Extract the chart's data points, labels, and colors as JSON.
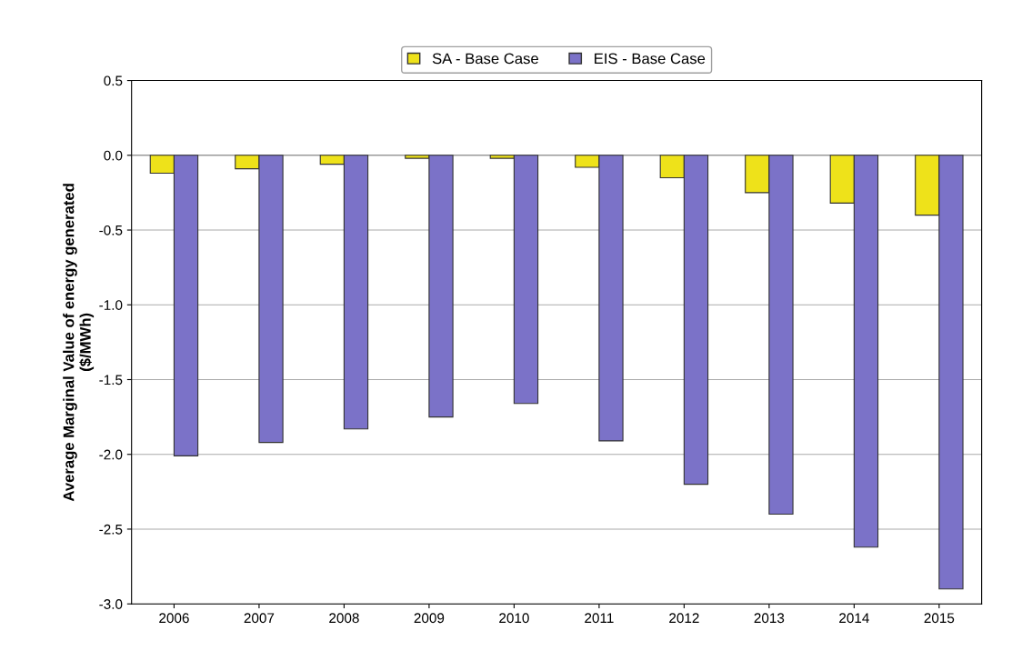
{
  "chart_data": {
    "type": "bar",
    "categories": [
      "2006",
      "2007",
      "2008",
      "2009",
      "2010",
      "2011",
      "2012",
      "2013",
      "2014",
      "2015"
    ],
    "series": [
      {
        "name": "SA - Base Case",
        "color": "#eee21a",
        "values": [
          -0.12,
          -0.09,
          -0.06,
          -0.02,
          -0.02,
          -0.08,
          -0.15,
          -0.25,
          -0.32,
          -0.4
        ]
      },
      {
        "name": "EIS - Base Case",
        "color": "#7b72c8",
        "values": [
          -2.01,
          -1.92,
          -1.83,
          -1.75,
          -1.66,
          -1.91,
          -2.2,
          -2.4,
          -2.62,
          -2.9
        ]
      }
    ],
    "ylabel": "Average Marginal Value of energy generated\n($/MWh)",
    "ylim": [
      -3.0,
      0.5
    ],
    "yticks": [
      {
        "value": 0.5,
        "label": "0.5"
      },
      {
        "value": 0.0,
        "label": "0.0"
      },
      {
        "value": -0.5,
        "label": "-0.5"
      },
      {
        "value": -1.0,
        "label": "-1.0"
      },
      {
        "value": -1.5,
        "label": "-1.5"
      },
      {
        "value": -2.0,
        "label": "-2.0"
      },
      {
        "value": -2.5,
        "label": "-2.5"
      },
      {
        "value": -3.0,
        "label": "-3.0"
      }
    ],
    "grid": "y",
    "legend": "top"
  }
}
